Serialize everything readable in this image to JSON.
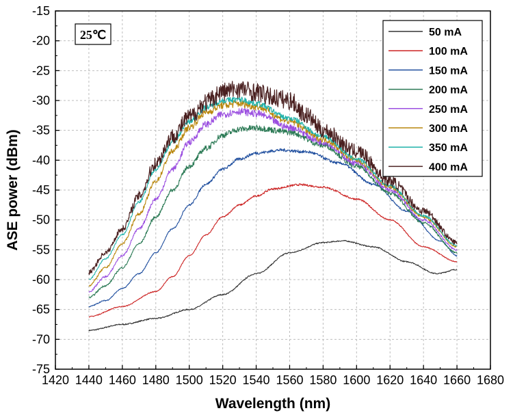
{
  "chart_data": {
    "type": "line",
    "xlabel": "Wavelength (nm)",
    "ylabel": "ASE power (dBm)",
    "xlim": [
      1420,
      1680
    ],
    "ylim": [
      -75,
      -15
    ],
    "xticks": [
      1420,
      1440,
      1460,
      1480,
      1500,
      1520,
      1540,
      1560,
      1580,
      1600,
      1620,
      1640,
      1660,
      1680
    ],
    "yticks": [
      -75,
      -70,
      -65,
      -60,
      -55,
      -50,
      -45,
      -40,
      -35,
      -30,
      -25,
      -20,
      -15
    ],
    "grid": true,
    "legend_position": "top-right",
    "annotation": "25℃",
    "series": [
      {
        "name": "50 mA",
        "color": "#333333",
        "x": [
          1440,
          1460,
          1480,
          1500,
          1520,
          1540,
          1560,
          1580,
          1592,
          1610,
          1630,
          1648,
          1660
        ],
        "y": [
          -68.5,
          -67.5,
          -66.5,
          -65.0,
          -62.5,
          -59.0,
          -55.5,
          -53.8,
          -53.5,
          -54.5,
          -57.0,
          -59.0,
          -58.3
        ],
        "noise": 0.8
      },
      {
        "name": "100 mA",
        "color": "#cc2222",
        "x": [
          1440,
          1460,
          1480,
          1490,
          1500,
          1510,
          1520,
          1530,
          1540,
          1550,
          1566,
          1580,
          1600,
          1620,
          1640,
          1660
        ],
        "y": [
          -66.2,
          -64.5,
          -62.0,
          -59.5,
          -56.0,
          -52.5,
          -49.5,
          -47.5,
          -46.0,
          -44.8,
          -44.1,
          -44.5,
          -46.5,
          -50.0,
          -54.5,
          -57.0
        ],
        "noise": 0.6
      },
      {
        "name": "150 mA",
        "color": "#1f4e9e",
        "x": [
          1440,
          1450,
          1460,
          1470,
          1480,
          1490,
          1500,
          1510,
          1520,
          1530,
          1540,
          1555,
          1570,
          1590,
          1610,
          1630,
          1650,
          1660
        ],
        "y": [
          -64.5,
          -63.5,
          -61.5,
          -59.0,
          -55.5,
          -51.5,
          -47.5,
          -44.0,
          -41.5,
          -39.8,
          -38.8,
          -38.3,
          -38.6,
          -40.5,
          -44.0,
          -48.5,
          -53.5,
          -56.0
        ],
        "noise": 0.7
      },
      {
        "name": "200 mA",
        "color": "#2b7a55",
        "x": [
          1440,
          1450,
          1460,
          1470,
          1480,
          1490,
          1500,
          1510,
          1520,
          1530,
          1540,
          1560,
          1580,
          1600,
          1620,
          1640,
          1660
        ],
        "y": [
          -63.0,
          -61.0,
          -58.0,
          -54.0,
          -49.5,
          -45.0,
          -41.0,
          -38.0,
          -35.8,
          -34.8,
          -34.6,
          -35.3,
          -37.5,
          -41.0,
          -45.5,
          -50.5,
          -55.5
        ],
        "noise": 1.2
      },
      {
        "name": "250 mA",
        "color": "#9b4fe0",
        "x": [
          1440,
          1450,
          1460,
          1470,
          1480,
          1490,
          1500,
          1510,
          1520,
          1530,
          1540,
          1560,
          1580,
          1600,
          1620,
          1640,
          1660
        ],
        "y": [
          -62.0,
          -59.5,
          -56.0,
          -51.5,
          -46.5,
          -41.5,
          -37.0,
          -34.0,
          -32.3,
          -31.8,
          -32.2,
          -34.5,
          -37.0,
          -40.5,
          -45.0,
          -50.0,
          -55.0
        ],
        "noise": 1.3
      },
      {
        "name": "300 mA",
        "color": "#b8860b",
        "x": [
          1440,
          1450,
          1460,
          1470,
          1480,
          1490,
          1500,
          1510,
          1520,
          1530,
          1540,
          1560,
          1580,
          1600,
          1620,
          1640,
          1660
        ],
        "y": [
          -61.0,
          -58.0,
          -54.0,
          -49.0,
          -43.5,
          -38.5,
          -34.5,
          -32.0,
          -30.8,
          -30.5,
          -31.0,
          -33.5,
          -36.5,
          -40.0,
          -44.5,
          -49.5,
          -54.5
        ],
        "noise": 1.3
      },
      {
        "name": "350 mA",
        "color": "#20b2aa",
        "x": [
          1440,
          1450,
          1460,
          1470,
          1480,
          1490,
          1500,
          1510,
          1520,
          1530,
          1540,
          1560,
          1580,
          1600,
          1620,
          1640,
          1660
        ],
        "y": [
          -60.0,
          -56.5,
          -52.5,
          -47.0,
          -41.5,
          -37.0,
          -33.5,
          -31.2,
          -30.0,
          -29.8,
          -30.5,
          -33.0,
          -36.0,
          -39.8,
          -44.3,
          -49.3,
          -54.3
        ],
        "noise": 1.0
      },
      {
        "name": "400 mA",
        "color": "#4a2020",
        "x": [
          1440,
          1450,
          1460,
          1470,
          1480,
          1490,
          1500,
          1510,
          1520,
          1530,
          1540,
          1550,
          1560,
          1570,
          1580,
          1600,
          1620,
          1640,
          1660
        ],
        "y": [
          -58.8,
          -55.5,
          -51.5,
          -46.0,
          -40.5,
          -36.0,
          -32.8,
          -30.3,
          -28.5,
          -28.0,
          -28.6,
          -29.5,
          -30.0,
          -32.5,
          -35.0,
          -38.5,
          -43.5,
          -48.5,
          -53.8
        ],
        "noise": 3.2
      }
    ]
  }
}
